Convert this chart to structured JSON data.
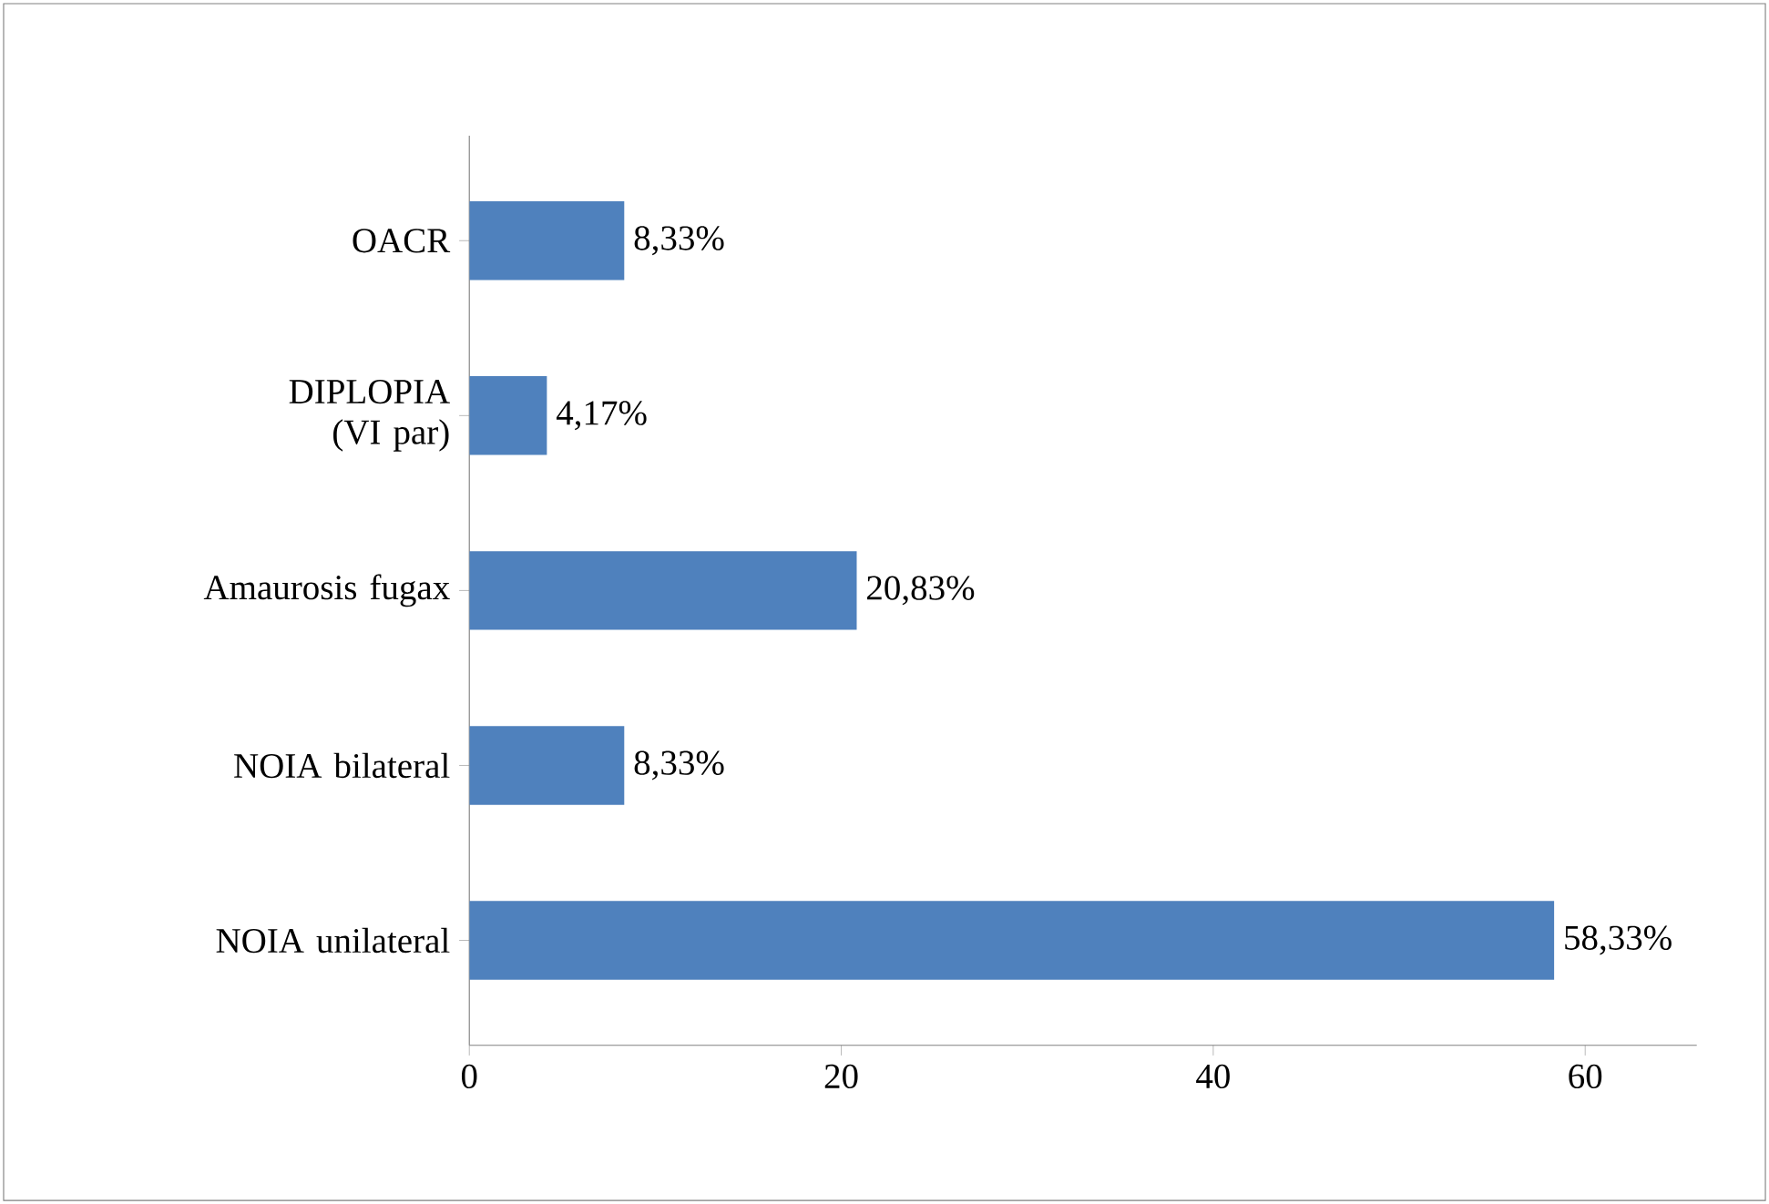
{
  "chart_data": {
    "type": "bar",
    "orientation": "horizontal",
    "categories": [
      "OACR",
      "DIPLOPIA (VI par)",
      "Amaurosis fugax",
      "NOIA bilateral",
      "NOIA unilateral"
    ],
    "values": [
      8.33,
      4.17,
      20.83,
      8.33,
      58.33
    ],
    "value_labels": [
      "8,33%",
      "4,17%",
      "20,83%",
      "8,33%",
      "58,33%"
    ],
    "color": "#4f81bd",
    "xlim": [
      0,
      66
    ],
    "xticks": [
      0,
      20,
      40,
      60
    ],
    "grid": false
  }
}
